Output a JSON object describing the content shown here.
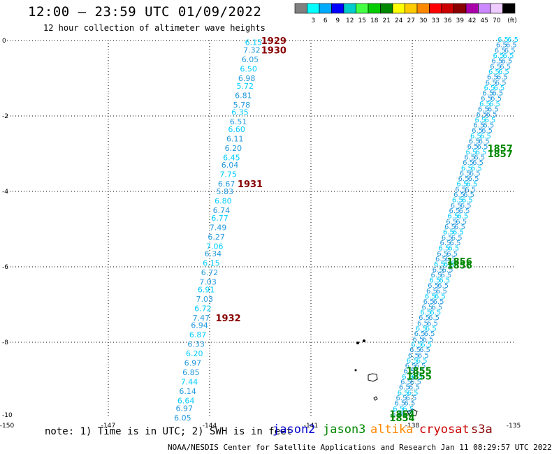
{
  "header": {
    "title": "12:00 – 23:59 UTC 01/09/2022",
    "subtitle": "12 hour collection of altimeter wave heights"
  },
  "colorbar": {
    "unit": "(ft)",
    "bins": [
      {
        "label": "",
        "color": "#808080"
      },
      {
        "label": "3",
        "color": "#00ffff"
      },
      {
        "label": "6",
        "color": "#00aaff"
      },
      {
        "label": "9",
        "color": "#0000ff"
      },
      {
        "label": "12",
        "color": "#00cccc"
      },
      {
        "label": "15",
        "color": "#44ff44"
      },
      {
        "label": "18",
        "color": "#00cc00"
      },
      {
        "label": "21",
        "color": "#008800"
      },
      {
        "label": "24",
        "color": "#ffff00"
      },
      {
        "label": "27",
        "color": "#ffcc00"
      },
      {
        "label": "30",
        "color": "#ff8800"
      },
      {
        "label": "33",
        "color": "#ff0000"
      },
      {
        "label": "36",
        "color": "#cc0000"
      },
      {
        "label": "39",
        "color": "#880000"
      },
      {
        "label": "42",
        "color": "#aa00aa"
      },
      {
        "label": "45",
        "color": "#cc88ff"
      },
      {
        "label": "70",
        "color": "#eeccff"
      },
      {
        "label": "",
        "color": "#000000"
      }
    ]
  },
  "footer": {
    "note": "note: 1) Time is in UTC; 2) SWH is in feet",
    "satellites": [
      {
        "name": "jason2",
        "color": "#0000cc"
      },
      {
        "name": "jason3",
        "color": "#008800"
      },
      {
        "name": "altika",
        "color": "#ff8800"
      },
      {
        "name": "cryosat",
        "color": "#cc0000"
      },
      {
        "name": "s3a",
        "color": "#880000"
      }
    ],
    "credit": "NOAA/NESDIS Center for Satellite Applications and Research    Jan 11 08:29:57 UTC 2022"
  },
  "chart_data": {
    "type": "scatter",
    "xlim": [
      -150,
      -135
    ],
    "ylim": [
      -10,
      0
    ],
    "x_ticks": [
      "-150",
      "-147",
      "-144",
      "-141",
      "-138",
      "-135"
    ],
    "y_ticks": [
      "0",
      "-2",
      "-4",
      "-6",
      "-8",
      "-10"
    ],
    "grid": "dotted",
    "colors": {
      "swh_cyan": "#00ccff",
      "swh_blue": "#2299dd",
      "time_red": "#880000",
      "time_green": "#008800"
    },
    "series": [
      {
        "name": "cryosat",
        "points": [
          {
            "lon": -142.7,
            "lat": -0.05,
            "swh": "6.15"
          },
          {
            "lon": -142.75,
            "lat": -0.25,
            "swh": "7.32"
          },
          {
            "lon": -142.8,
            "lat": -0.5,
            "swh": "6.05"
          },
          {
            "lon": -142.85,
            "lat": -0.75,
            "swh": "6.50"
          },
          {
            "lon": -142.9,
            "lat": -1.0,
            "swh": "6.98"
          },
          {
            "lon": -142.95,
            "lat": -1.2,
            "swh": "5.72"
          },
          {
            "lon": -143.0,
            "lat": -1.45,
            "swh": "6.81"
          },
          {
            "lon": -143.05,
            "lat": -1.7,
            "swh": "5.78"
          },
          {
            "lon": -143.1,
            "lat": -1.9,
            "swh": "6.35"
          },
          {
            "lon": -143.15,
            "lat": -2.15,
            "swh": "6.51"
          },
          {
            "lon": -143.2,
            "lat": -2.35,
            "swh": "6.60"
          },
          {
            "lon": -143.25,
            "lat": -2.6,
            "swh": "6.11"
          },
          {
            "lon": -143.3,
            "lat": -2.85,
            "swh": "6.20"
          },
          {
            "lon": -143.35,
            "lat": -3.1,
            "swh": "6.45"
          },
          {
            "lon": -143.4,
            "lat": -3.3,
            "swh": "6.04"
          },
          {
            "lon": -143.45,
            "lat": -3.55,
            "swh": "7.75"
          },
          {
            "lon": -143.5,
            "lat": -3.8,
            "swh": "6.67"
          },
          {
            "lon": -143.55,
            "lat": -4.0,
            "swh": "5.83"
          },
          {
            "lon": -143.6,
            "lat": -4.25,
            "swh": "6.80"
          },
          {
            "lon": -143.65,
            "lat": -4.5,
            "swh": "6.74"
          },
          {
            "lon": -143.7,
            "lat": -4.7,
            "swh": "6.77"
          },
          {
            "lon": -143.75,
            "lat": -4.95,
            "swh": "7.49"
          },
          {
            "lon": -143.8,
            "lat": -5.2,
            "swh": "6.27"
          },
          {
            "lon": -143.85,
            "lat": -5.45,
            "swh": "7.06"
          },
          {
            "lon": -143.9,
            "lat": -5.65,
            "swh": "6.34"
          },
          {
            "lon": -143.95,
            "lat": -5.9,
            "swh": "6.15"
          },
          {
            "lon": -144.0,
            "lat": -6.15,
            "swh": "6.72"
          },
          {
            "lon": -144.05,
            "lat": -6.4,
            "swh": "7.03"
          },
          {
            "lon": -144.1,
            "lat": -6.6,
            "swh": "6.91"
          },
          {
            "lon": -144.15,
            "lat": -6.85,
            "swh": "7.03"
          },
          {
            "lon": -144.2,
            "lat": -7.1,
            "swh": "6.72"
          },
          {
            "lon": -144.25,
            "lat": -7.35,
            "swh": "7.47"
          },
          {
            "lon": -144.3,
            "lat": -7.55,
            "swh": "6.94"
          },
          {
            "lon": -144.35,
            "lat": -7.8,
            "swh": "6.87"
          },
          {
            "lon": -144.4,
            "lat": -8.05,
            "swh": "6.33"
          },
          {
            "lon": -144.45,
            "lat": -8.3,
            "swh": "6.20"
          },
          {
            "lon": -144.5,
            "lat": -8.55,
            "swh": "6.97"
          },
          {
            "lon": -144.55,
            "lat": -8.8,
            "swh": "6.85"
          },
          {
            "lon": -144.6,
            "lat": -9.05,
            "swh": "7.44"
          },
          {
            "lon": -144.65,
            "lat": -9.3,
            "swh": "6.14"
          },
          {
            "lon": -144.7,
            "lat": -9.55,
            "swh": "6.64"
          },
          {
            "lon": -144.75,
            "lat": -9.75,
            "swh": "6.97"
          },
          {
            "lon": -144.8,
            "lat": -10.0,
            "swh": "6.05"
          }
        ],
        "times": [
          {
            "lon": -142.1,
            "lat": 0.0,
            "label": "1929"
          },
          {
            "lon": -142.1,
            "lat": -0.25,
            "label": "1930"
          },
          {
            "lon": -142.8,
            "lat": -3.8,
            "label": "1931"
          },
          {
            "lon": -143.45,
            "lat": -7.35,
            "label": "1932"
          }
        ]
      },
      {
        "name": "jason3",
        "times": [
          {
            "lon": -135.4,
            "lat": -2.85,
            "label": "1857"
          },
          {
            "lon": -135.4,
            "lat": -3.0,
            "label": "1857"
          },
          {
            "lon": -136.6,
            "lat": -5.85,
            "label": "1856"
          },
          {
            "lon": -136.6,
            "lat": -5.95,
            "label": "1856"
          },
          {
            "lon": -137.8,
            "lat": -8.75,
            "label": "1855"
          },
          {
            "lon": -137.8,
            "lat": -8.9,
            "label": "1855"
          },
          {
            "lon": -138.3,
            "lat": -9.9,
            "label": "1854"
          },
          {
            "lon": -138.3,
            "lat": -10.0,
            "label": "1854"
          }
        ]
      }
    ]
  }
}
